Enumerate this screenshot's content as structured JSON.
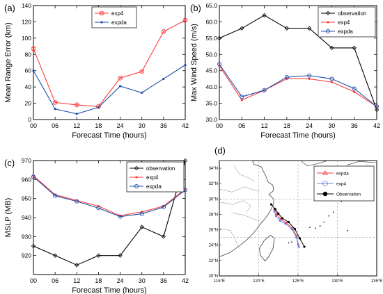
{
  "chart_data": [
    {
      "panel_label": "(a)",
      "type": "line",
      "xlabel": "Forecast Time (hours)",
      "ylabel": "Mean Range Error (km)",
      "x": [
        "00",
        "06",
        "12",
        "18",
        "24",
        "30",
        "36",
        "42"
      ],
      "xlim": [
        0,
        42
      ],
      "ylim": [
        0,
        140
      ],
      "yticks": [
        0,
        20,
        40,
        60,
        80,
        100,
        120,
        140
      ],
      "legend_position": "top-center",
      "series": [
        {
          "name": "exp4",
          "color": "#ff3b3b",
          "marker": "circle-x",
          "values": [
            87,
            21,
            18,
            16,
            51,
            59,
            108,
            122
          ]
        },
        {
          "name": "expda",
          "color": "#1f4fa8",
          "marker": "dot",
          "values": [
            60,
            13,
            7,
            15,
            41,
            33,
            50,
            67
          ]
        }
      ]
    },
    {
      "panel_label": "(b)",
      "type": "line",
      "xlabel": "Forecast Time (hours)",
      "ylabel": "Max Wind Speed (m/s)",
      "x": [
        "00",
        "06",
        "12",
        "18",
        "24",
        "30",
        "36",
        "42"
      ],
      "xlim": [
        0,
        42
      ],
      "ylim": [
        30,
        65
      ],
      "yticks": [
        30,
        35,
        40,
        45,
        50,
        55,
        60,
        65
      ],
      "yticklabels": [
        "30.0",
        "35.0",
        "40.0",
        "45.0",
        "50.0",
        "55.0",
        "60.0",
        "65.0"
      ],
      "legend_position": "top-right",
      "series": [
        {
          "name": "observation",
          "color": "#000000",
          "marker": "diamond",
          "values": [
            55,
            58,
            62,
            58,
            58,
            52,
            52,
            33
          ]
        },
        {
          "name": "exp4",
          "color": "#ff3b3b",
          "marker": "dot",
          "values": [
            46.5,
            36,
            39,
            42.5,
            42.5,
            41.5,
            38.5,
            34
          ]
        },
        {
          "name": "expda",
          "color": "#1f4fa8",
          "marker": "circle",
          "values": [
            47,
            37,
            39,
            43,
            43.5,
            42.5,
            39.5,
            34
          ]
        }
      ]
    },
    {
      "panel_label": "(c)",
      "type": "line",
      "xlabel": "Forecast Time (hours)",
      "ylabel": "MSLP (MB)",
      "x": [
        "00",
        "06",
        "12",
        "18",
        "24",
        "30",
        "36",
        "42"
      ],
      "xlim": [
        0,
        42
      ],
      "ylim": [
        910,
        970
      ],
      "yticks": [
        920,
        930,
        940,
        950,
        960,
        970
      ],
      "legend_position": "top-right",
      "series": [
        {
          "name": "observation",
          "color": "#000000",
          "marker": "diamond",
          "values": [
            925,
            920,
            915,
            920,
            920,
            935,
            930,
            970
          ]
        },
        {
          "name": "exp4",
          "color": "#ff3b3b",
          "marker": "dot",
          "values": [
            962,
            952,
            949,
            946,
            941,
            943,
            946,
            955
          ]
        },
        {
          "name": "expda",
          "color": "#1f4fa8",
          "marker": "circle",
          "values": [
            961.5,
            951.5,
            948.5,
            945,
            940.5,
            942,
            945.5,
            954.5
          ]
        }
      ]
    },
    {
      "panel_label": "(d)",
      "type": "map",
      "lon_ticks": [
        "115°E",
        "120°E",
        "125°E",
        "130°E",
        "135°E"
      ],
      "lat_ticks": [
        "20°N",
        "22°N",
        "24°N",
        "26°N",
        "28°N",
        "30°N",
        "32°N",
        "34°N"
      ],
      "lon_range": [
        115,
        135
      ],
      "lat_range": [
        20,
        35
      ],
      "legend_position": "top-right",
      "tracks": [
        {
          "name": "expda",
          "color": "#ff3b3b",
          "marker": "triangle",
          "points": [
            [
              122.0,
              28.7
            ],
            [
              122.3,
              28.0
            ],
            [
              122.8,
              27.4
            ],
            [
              123.5,
              26.9
            ],
            [
              124.3,
              26.2
            ],
            [
              124.8,
              25.2
            ],
            [
              125.0,
              24.1
            ]
          ]
        },
        {
          "name": "exp4",
          "color": "#6a7fe0",
          "marker": "circle",
          "points": [
            [
              122.0,
              28.4
            ],
            [
              122.2,
              27.8
            ],
            [
              122.7,
              27.2
            ],
            [
              123.4,
              26.8
            ],
            [
              124.2,
              26.1
            ],
            [
              124.8,
              25.0
            ],
            [
              125.1,
              23.8
            ]
          ]
        },
        {
          "name": "Observation",
          "color": "#000000",
          "marker": "dot",
          "points": [
            [
              121.6,
              29.3
            ],
            [
              122.1,
              28.7
            ],
            [
              122.5,
              28.1
            ],
            [
              123.0,
              27.5
            ],
            [
              123.8,
              27.0
            ],
            [
              124.6,
              26.1
            ],
            [
              125.2,
              24.9
            ],
            [
              125.8,
              23.8
            ]
          ]
        }
      ]
    }
  ]
}
